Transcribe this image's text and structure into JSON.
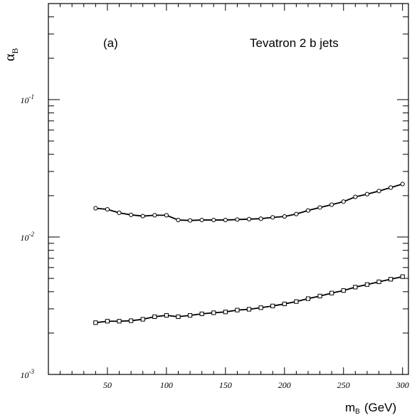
{
  "chart_data": {
    "type": "line",
    "panel_label": "(a)",
    "annotation": "Tevatron 2 b jets",
    "xlabel": "m",
    "xlabel_sub": "B",
    "xlabel_unit": "(GeV)",
    "ylabel": "α",
    "ylabel_sub": "B",
    "xlim": [
      0,
      305
    ],
    "ylim": [
      0.001,
      0.5
    ],
    "yscale": "log",
    "grid": false,
    "x_ticks": [
      50,
      100,
      150,
      200,
      250,
      300
    ],
    "y_ticks": [
      {
        "base": "10",
        "exp": "-3"
      },
      {
        "base": "10",
        "exp": "-2"
      },
      {
        "base": "10",
        "exp": "-1"
      }
    ],
    "x": [
      40,
      50,
      60,
      70,
      80,
      90,
      100,
      110,
      120,
      130,
      140,
      150,
      160,
      170,
      180,
      190,
      200,
      210,
      220,
      230,
      240,
      250,
      260,
      270,
      280,
      290,
      300
    ],
    "series": [
      {
        "marker": "circle",
        "values": [
          0.0162,
          0.0159,
          0.015,
          0.0145,
          0.0142,
          0.0144,
          0.0144,
          0.0133,
          0.0132,
          0.0133,
          0.0133,
          0.0133,
          0.0134,
          0.0135,
          0.0136,
          0.0139,
          0.0141,
          0.0147,
          0.0156,
          0.0164,
          0.0172,
          0.0181,
          0.0196,
          0.0205,
          0.0216,
          0.0229,
          0.0243
        ]
      },
      {
        "marker": "square",
        "values": [
          0.00238,
          0.00244,
          0.00244,
          0.00246,
          0.00252,
          0.00263,
          0.00269,
          0.00263,
          0.00269,
          0.00276,
          0.00281,
          0.00285,
          0.00294,
          0.00298,
          0.00306,
          0.00315,
          0.00326,
          0.00339,
          0.00356,
          0.00372,
          0.00391,
          0.00408,
          0.00432,
          0.00451,
          0.00472,
          0.00493,
          0.00515
        ]
      }
    ]
  }
}
